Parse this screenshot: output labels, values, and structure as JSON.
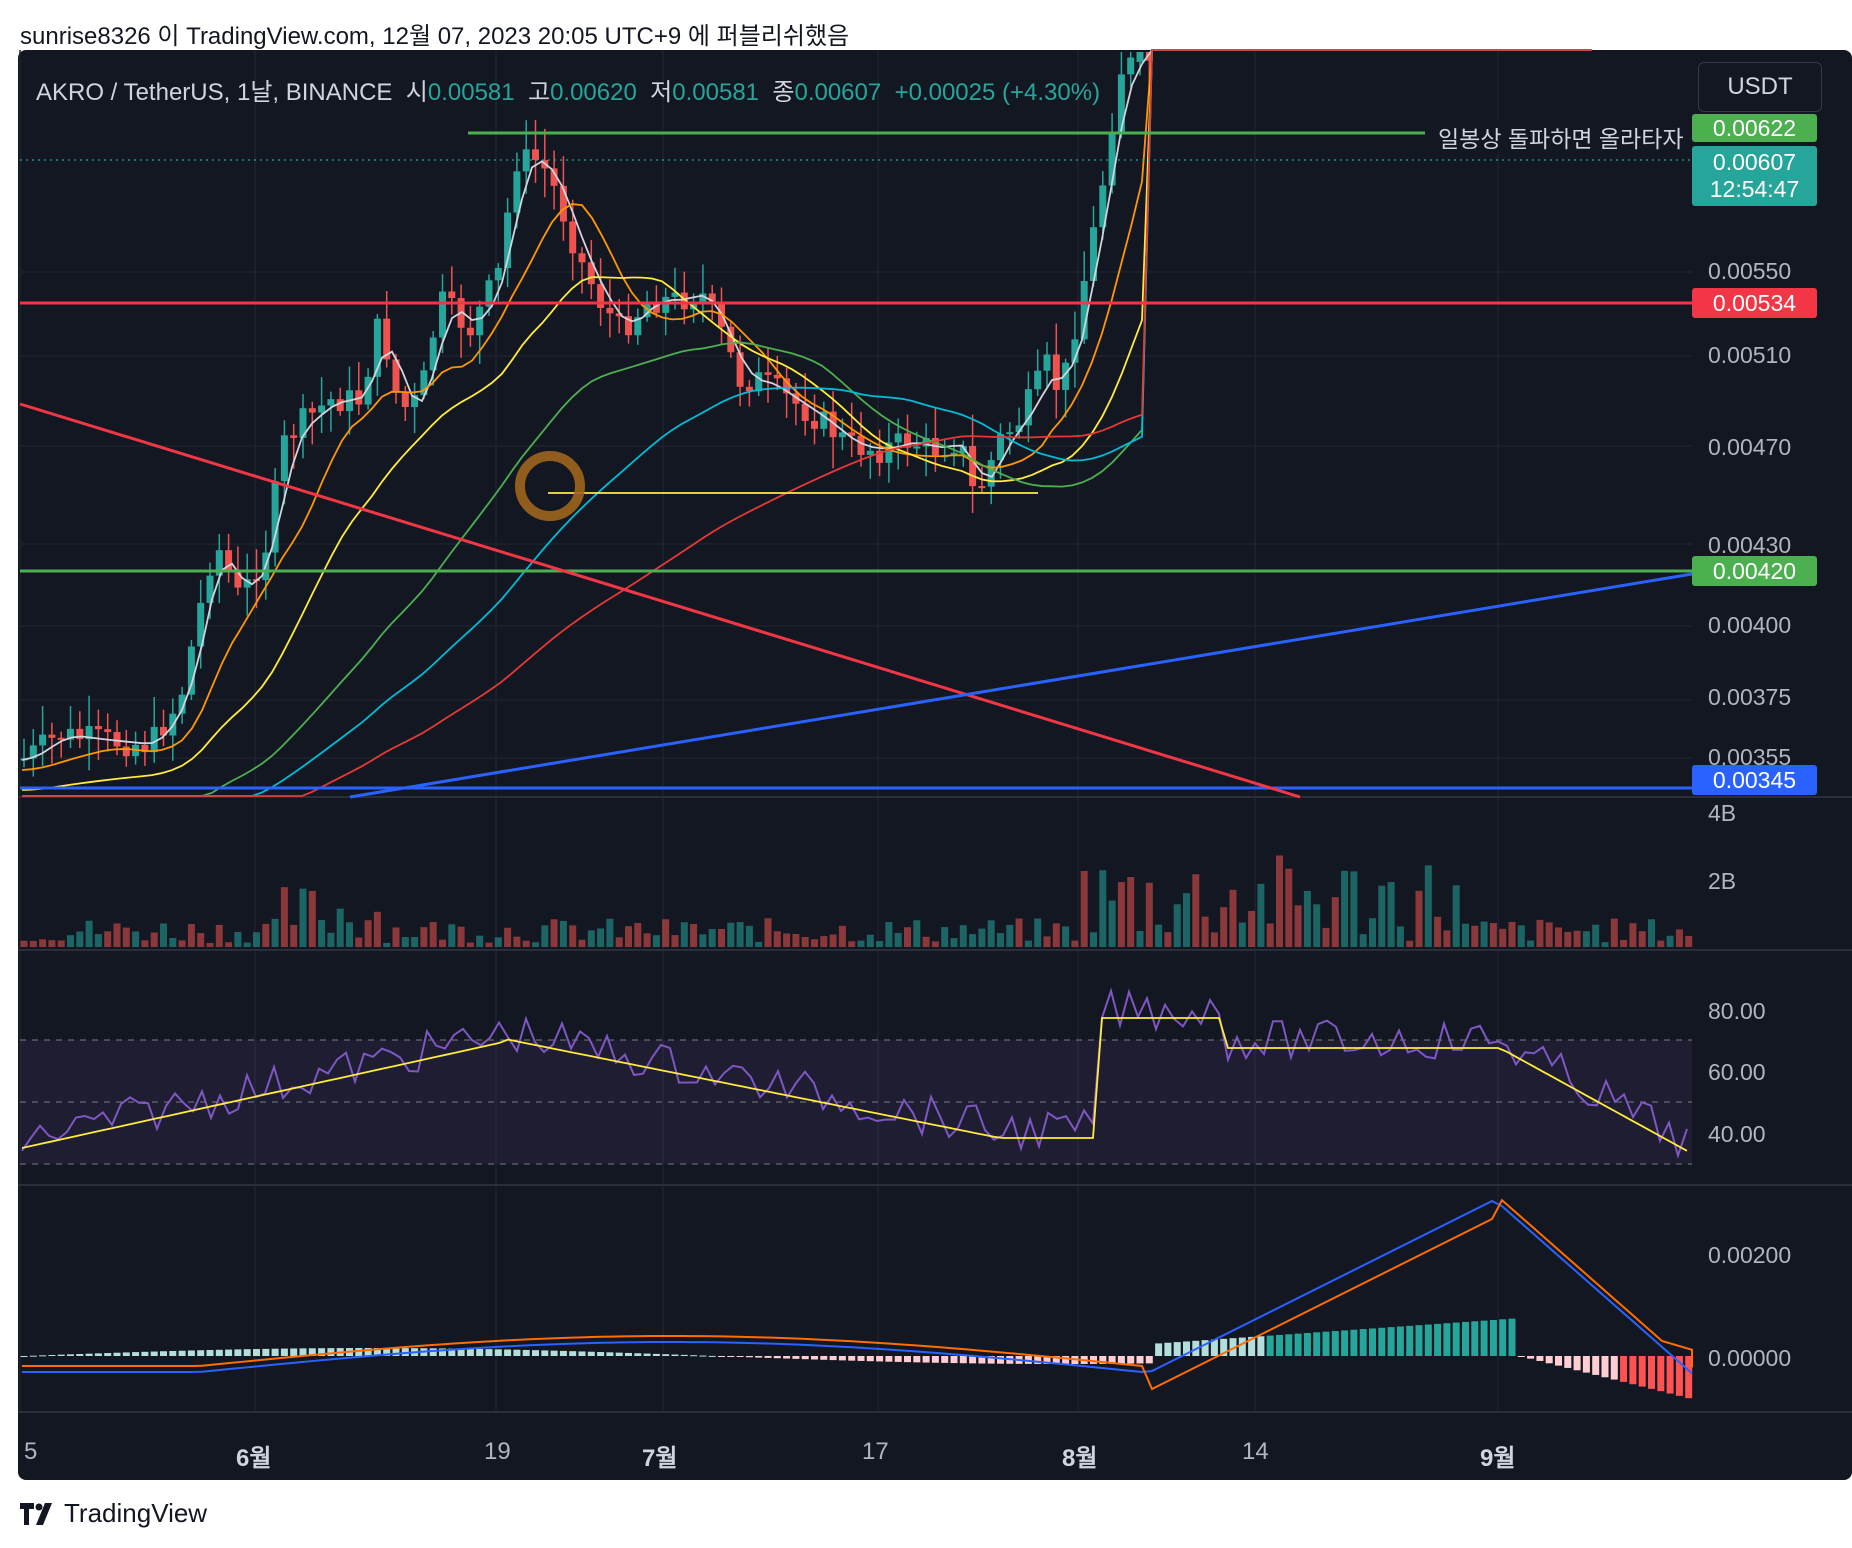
{
  "header": {
    "published_by": "sunrise8326 이 TradingView.com, 12월 07, 2023 20:05 UTC+9 에 퍼블리쉬했음"
  },
  "symbol": {
    "name": "AKRO / TetherUS, 1날, BINANCE",
    "open_label": "시",
    "open": "0.00581",
    "high_label": "고",
    "high": "0.00620",
    "low_label": "저",
    "low": "0.00581",
    "close_label": "종",
    "close": "0.00607",
    "change": "+0.00025 (+4.30%)"
  },
  "currency_button": "USDT",
  "price_axis": {
    "labels": [
      "0.00550",
      "0.00510",
      "0.00470",
      "0.00430",
      "0.00400",
      "0.00375",
      "0.00355"
    ],
    "tags": [
      {
        "text": "0.00622",
        "color": "#4caf50"
      },
      {
        "text": "0.00607",
        "sub": "12:54:47",
        "color": "#26a69a"
      },
      {
        "text": "0.00534",
        "color": "#f23645"
      },
      {
        "text": "0.00420",
        "color": "#4caf50"
      },
      {
        "text": "0.00345",
        "color": "#2962ff"
      }
    ]
  },
  "annotation": {
    "hline_label": "일봉상 돌파하면 올라타자"
  },
  "volume_axis": [
    "4B",
    "2B"
  ],
  "rsi_axis": [
    "80.00",
    "60.00",
    "40.00"
  ],
  "macd_axis": [
    "0.00200",
    "0.00000"
  ],
  "time_axis": [
    {
      "label": "5",
      "bold": false
    },
    {
      "label": "6월",
      "bold": true
    },
    {
      "label": "19",
      "bold": false
    },
    {
      "label": "7월",
      "bold": true
    },
    {
      "label": "17",
      "bold": false
    },
    {
      "label": "8월",
      "bold": true
    },
    {
      "label": "14",
      "bold": false
    },
    {
      "label": "9월",
      "bold": true
    }
  ],
  "footer": {
    "logo_text": "TradingView"
  },
  "colors": {
    "background": "#131722",
    "up": "#26a69a",
    "down": "#ef5350",
    "red_line": "#f23645",
    "green_line": "#4caf50",
    "blue_line": "#2962ff",
    "rsi": "#7e57c2",
    "rsi_ma": "#ffeb3b",
    "macd": "#2962ff",
    "signal": "#ff6d00"
  }
}
